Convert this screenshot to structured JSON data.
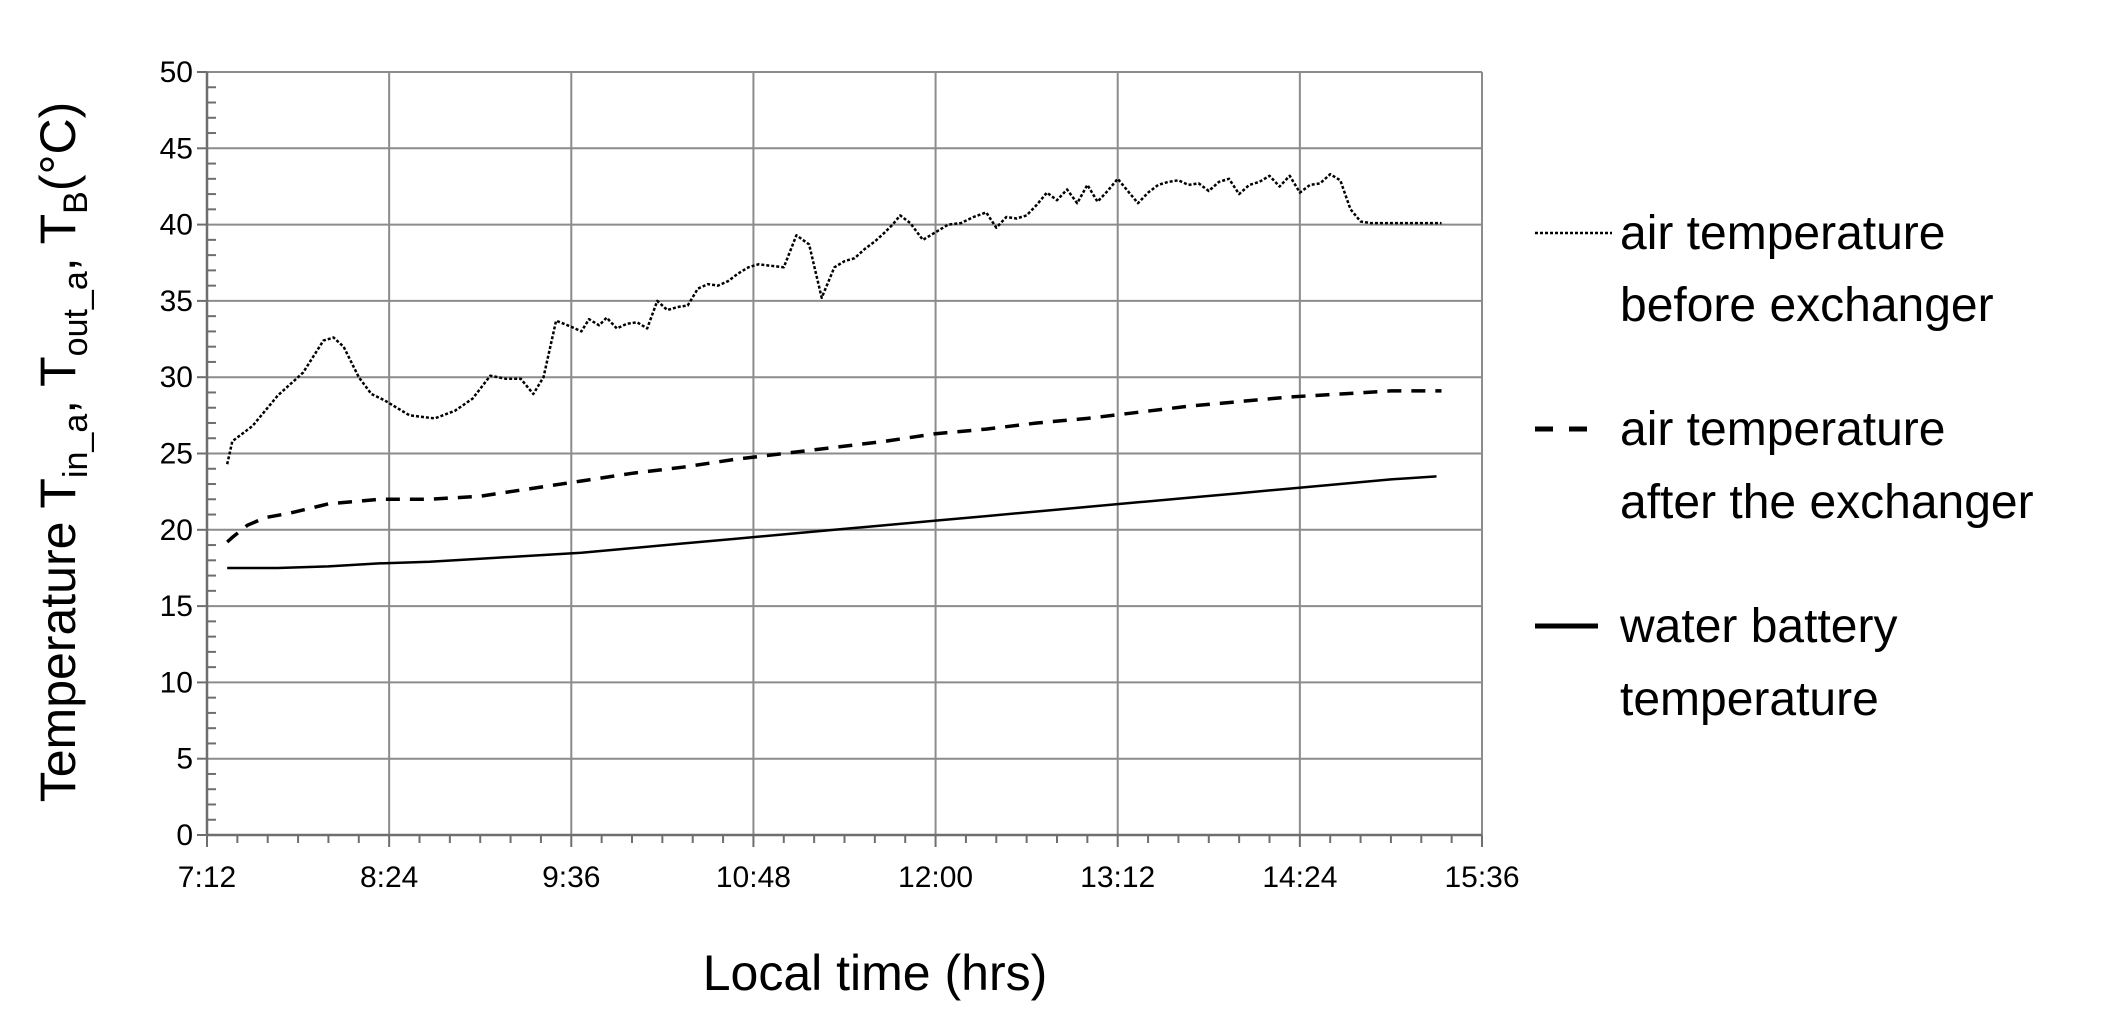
{
  "chart_data": {
    "type": "line",
    "title": "",
    "xlabel": "Local time (hrs)",
    "ylabel_main": "Temperature T",
    "ylabel_sub1": "in_a",
    "ylabel_sep1": ", T",
    "ylabel_sub2": "out_a",
    "ylabel_sep2": ", T",
    "ylabel_sub3": "B",
    "ylabel_tail": "(°C)",
    "xlim": [
      432,
      936
    ],
    "ylim": [
      0,
      50
    ],
    "x_ticks": [
      432,
      504,
      576,
      648,
      720,
      792,
      864,
      936
    ],
    "x_tick_labels": [
      "7:12",
      "8:24",
      "9:36",
      "10:48",
      "12:00",
      "13:12",
      "14:24",
      "15:36"
    ],
    "y_ticks": [
      0,
      5,
      10,
      15,
      20,
      25,
      30,
      35,
      40,
      45,
      50
    ],
    "y_tick_labels": [
      "0",
      "5",
      "10",
      "15",
      "20",
      "25",
      "30",
      "35",
      "40",
      "45",
      "50"
    ],
    "grid": true,
    "legend_position": "right",
    "series": [
      {
        "name": "air temperature before exchanger",
        "legend_lines": [
          "air temperature",
          "before exchanger"
        ],
        "style": "dotted",
        "x": [
          440,
          442,
          450,
          460,
          470,
          478,
          482,
          486,
          492,
          497,
          502,
          512,
          522,
          530,
          537,
          544,
          550,
          556,
          561,
          565,
          570,
          576,
          580,
          583,
          587,
          590,
          594,
          598,
          602,
          606,
          610,
          614,
          618,
          622,
          626,
          630,
          634,
          638,
          642,
          646,
          650,
          655,
          660,
          665,
          670,
          675,
          680,
          684,
          688,
          692,
          696,
          700,
          703,
          706,
          710,
          715,
          720,
          725,
          730,
          735,
          740,
          744,
          748,
          752,
          756,
          760,
          764,
          768,
          772,
          776,
          780,
          784,
          788,
          792,
          796,
          800,
          804,
          808,
          812,
          816,
          820,
          824,
          828,
          832,
          836,
          840,
          844,
          848,
          852,
          856,
          860,
          864,
          868,
          872,
          876,
          880,
          884,
          888,
          892,
          896,
          900,
          904,
          908,
          912,
          916,
          920
        ],
        "y": [
          24.3,
          25.8,
          26.8,
          28.8,
          30.3,
          32.4,
          32.6,
          32.0,
          30.0,
          28.9,
          28.5,
          27.5,
          27.3,
          27.8,
          28.6,
          30.1,
          29.9,
          29.9,
          28.9,
          30.0,
          33.7,
          33.3,
          33.0,
          33.8,
          33.4,
          33.9,
          33.2,
          33.5,
          33.6,
          33.2,
          35.0,
          34.4,
          34.6,
          34.7,
          35.8,
          36.1,
          36.0,
          36.3,
          36.8,
          37.2,
          37.4,
          37.3,
          37.2,
          39.3,
          38.7,
          35.2,
          37.2,
          37.6,
          37.8,
          38.4,
          38.9,
          39.5,
          40.0,
          40.6,
          40.1,
          39.0,
          39.5,
          40.0,
          40.1,
          40.5,
          40.8,
          39.8,
          40.5,
          40.4,
          40.6,
          41.3,
          42.1,
          41.6,
          42.3,
          41.4,
          42.6,
          41.5,
          42.2,
          43.0,
          42.2,
          41.4,
          42.1,
          42.6,
          42.8,
          42.9,
          42.6,
          42.7,
          42.2,
          42.8,
          43.0,
          42.0,
          42.6,
          42.8,
          43.2,
          42.5,
          43.2,
          42.1,
          42.6,
          42.7,
          43.3,
          42.9,
          41.0,
          40.2,
          40.1,
          40.1,
          40.1,
          40.1,
          40.1,
          40.1,
          40.1,
          40.1
        ]
      },
      {
        "name": "air temperature after the exchanger",
        "legend_lines": [
          "air temperature",
          "after the exchanger"
        ],
        "style": "dashed",
        "x": [
          440,
          442,
          448,
          455,
          465,
          480,
          500,
          520,
          540,
          560,
          580,
          600,
          620,
          640,
          660,
          680,
          700,
          720,
          740,
          760,
          780,
          800,
          820,
          840,
          860,
          880,
          900,
          920
        ],
        "y": [
          19.2,
          19.5,
          20.3,
          20.8,
          21.1,
          21.7,
          22.0,
          22.0,
          22.2,
          22.7,
          23.2,
          23.7,
          24.1,
          24.6,
          25.0,
          25.4,
          25.8,
          26.3,
          26.6,
          27.0,
          27.3,
          27.7,
          28.1,
          28.4,
          28.7,
          28.9,
          29.1,
          29.1
        ]
      },
      {
        "name": "water battery temperature",
        "legend_lines": [
          "water battery",
          "temperature"
        ],
        "style": "solid",
        "x": [
          440,
          460,
          480,
          500,
          520,
          540,
          560,
          580,
          600,
          620,
          640,
          660,
          680,
          700,
          720,
          740,
          760,
          780,
          800,
          820,
          840,
          860,
          880,
          900,
          918
        ],
        "y": [
          17.5,
          17.5,
          17.6,
          17.8,
          17.9,
          18.1,
          18.3,
          18.5,
          18.8,
          19.1,
          19.4,
          19.7,
          20.0,
          20.3,
          20.6,
          20.9,
          21.2,
          21.5,
          21.8,
          22.1,
          22.4,
          22.7,
          23.0,
          23.3,
          23.5
        ]
      }
    ]
  }
}
